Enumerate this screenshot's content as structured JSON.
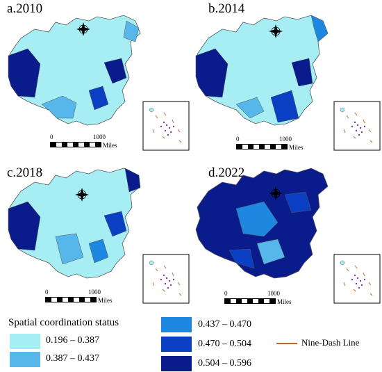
{
  "panels": [
    {
      "label": "a.2010"
    },
    {
      "label": "b.2014"
    },
    {
      "label": "c.2018"
    },
    {
      "label": "d.2022"
    }
  ],
  "scale": {
    "zero": "0",
    "max": "1000",
    "unit": "Miles"
  },
  "legend": {
    "title": "Spatial coordination status",
    "classes": [
      {
        "range": "0.196 – 0.387",
        "color": "#a6eef4"
      },
      {
        "range": "0.387 – 0.437",
        "color": "#57b6ea"
      },
      {
        "range": "0.437 – 0.470",
        "color": "#1e88e0"
      },
      {
        "range": "0.470 – 0.504",
        "color": "#0b3fc4"
      },
      {
        "range": "0.504 – 0.596",
        "color": "#0a1c8c"
      }
    ],
    "nine_dash_label": "Nine-Dash Line",
    "nine_dash_color": "#c8642a"
  },
  "compass": {
    "n": "N",
    "s": "S",
    "e": "E",
    "w": "W"
  }
}
